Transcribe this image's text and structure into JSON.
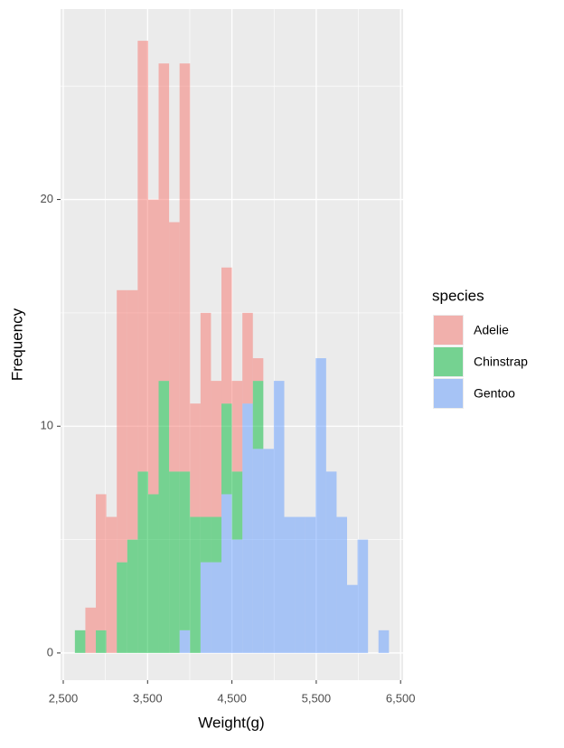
{
  "chart_data": {
    "type": "histogram",
    "stacked": true,
    "alpha": 0.5,
    "x_label": "Weight(g)",
    "y_label": "Frequency",
    "legend_title": "species",
    "legend_position": "right",
    "grid": true,
    "bins": [
      2637.9,
      2762.1,
      2886.2,
      3010.3,
      3134.5,
      3258.6,
      3382.8,
      3506.9,
      3631.0,
      3755.2,
      3879.3,
      4003.4,
      4127.6,
      4251.7,
      4375.9,
      4500.0,
      4624.1,
      4748.3,
      4872.4,
      4996.6,
      5120.7,
      5244.8,
      5369.0,
      5493.1,
      5617.2,
      5741.4,
      5865.5,
      5989.7,
      6113.8,
      6237.9,
      6362.1
    ],
    "series": [
      {
        "name": "Adelie",
        "color": "#F8766D",
        "values": [
          0,
          2,
          6,
          6,
          12,
          11,
          19,
          13,
          14,
          11,
          18,
          5,
          9,
          6,
          6,
          4,
          4,
          1,
          0,
          0,
          0,
          0,
          0,
          0,
          0,
          0,
          0,
          0,
          0,
          0
        ]
      },
      {
        "name": "Chinstrap",
        "color": "#00BA38",
        "values": [
          1,
          0,
          1,
          0,
          4,
          5,
          8,
          7,
          12,
          8,
          7,
          6,
          2,
          2,
          4,
          3,
          0,
          3,
          0,
          0,
          0,
          0,
          0,
          0,
          0,
          0,
          0,
          0,
          0,
          0
        ]
      },
      {
        "name": "Gentoo",
        "color": "#619CFF",
        "values": [
          0,
          0,
          0,
          0,
          0,
          0,
          0,
          0,
          0,
          0,
          1,
          0,
          4,
          4,
          7,
          5,
          11,
          9,
          9,
          12,
          6,
          6,
          6,
          13,
          8,
          6,
          3,
          5,
          0,
          1
        ]
      }
    ],
    "xlim": [
      2468,
      6530
    ],
    "ylim": [
      -1.2,
      28.4
    ],
    "xticks": [
      {
        "value": 2500,
        "label": "2,500"
      },
      {
        "value": 3500,
        "label": "3,500"
      },
      {
        "value": 4500,
        "label": "4,500"
      },
      {
        "value": 5500,
        "label": "5,500"
      },
      {
        "value": 6500,
        "label": "6,500"
      }
    ],
    "yticks": [
      0,
      10,
      20
    ]
  }
}
